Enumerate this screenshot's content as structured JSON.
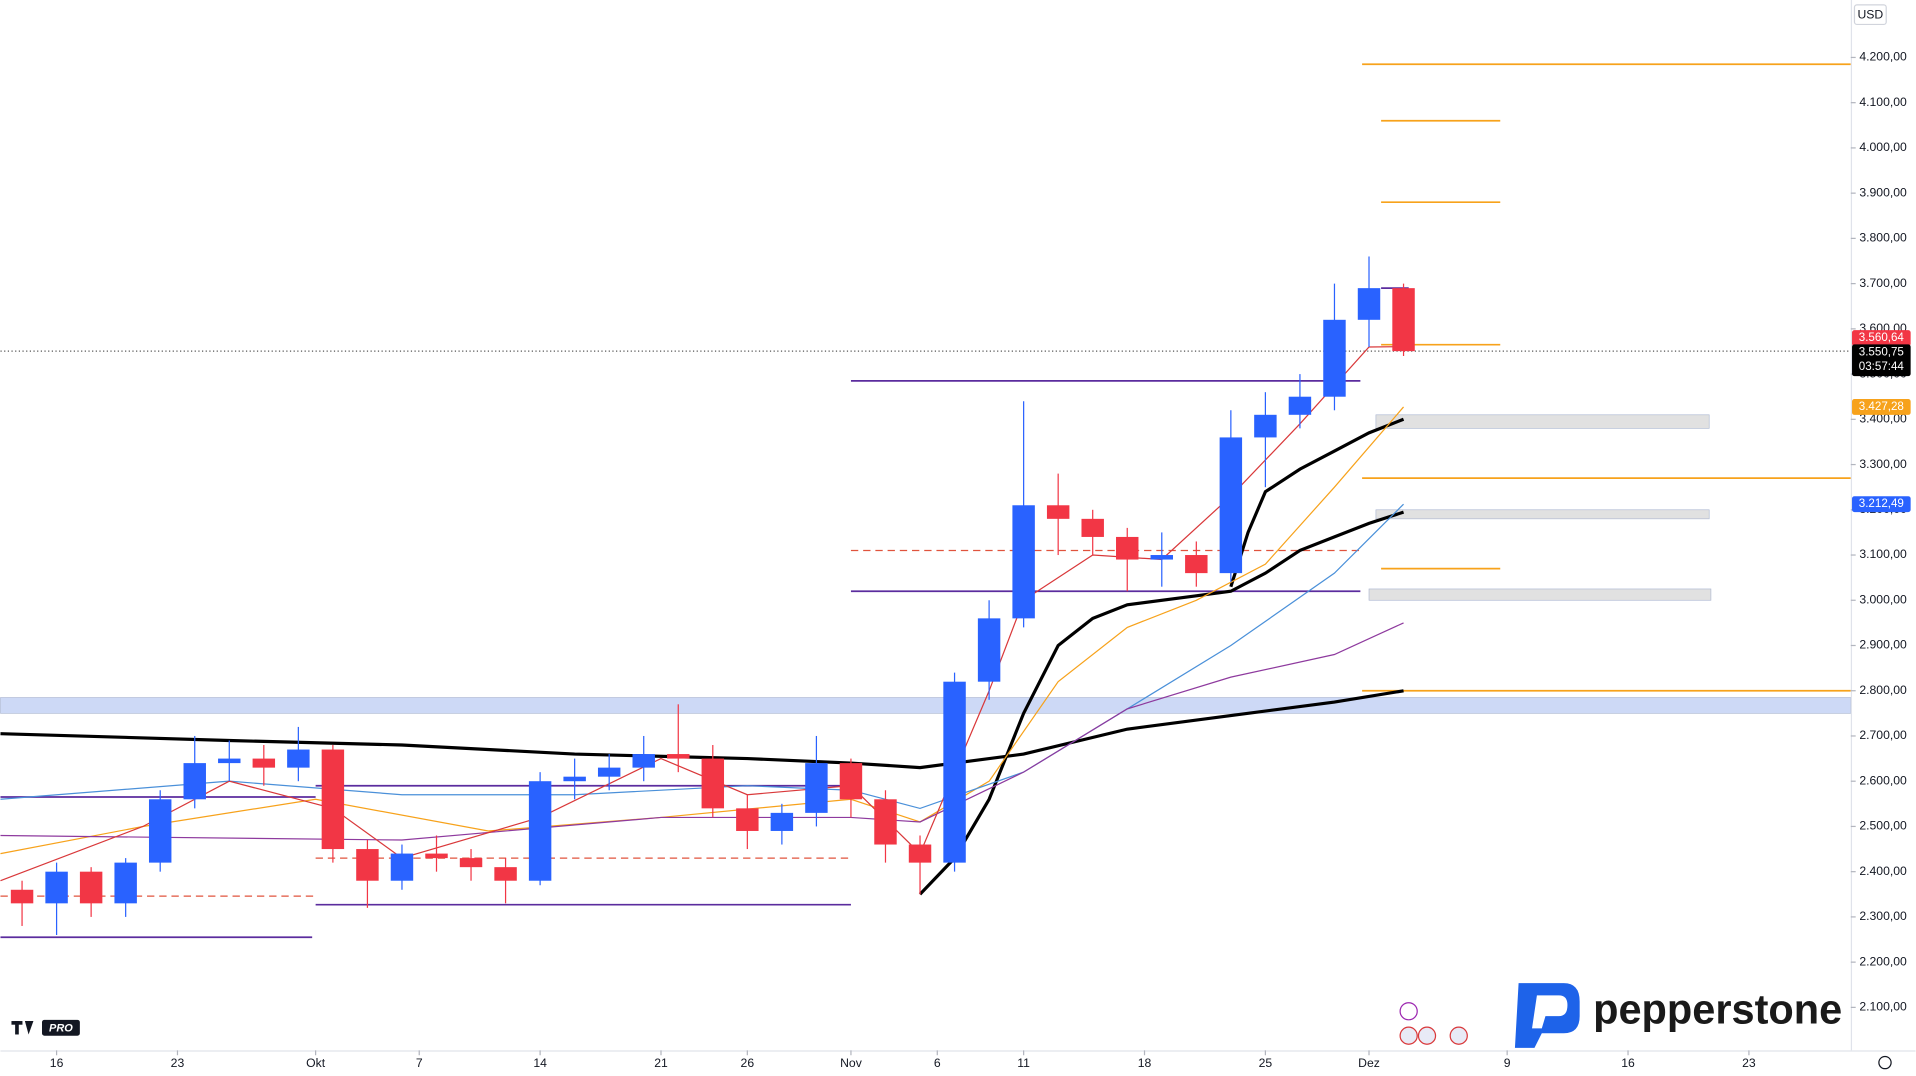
{
  "currency": "USD",
  "badge": "PRO",
  "logo": "pepperstone",
  "chart_data": {
    "type": "candlestick",
    "xlim": [
      -3.25,
      103.9
    ],
    "ylim": [
      2005,
      4327
    ],
    "xticks": [
      {
        "value": 0,
        "label": "16"
      },
      {
        "value": 7,
        "label": "23"
      },
      {
        "value": 15,
        "label": "Okt"
      },
      {
        "value": 21,
        "label": "7"
      },
      {
        "value": 28,
        "label": "14"
      },
      {
        "value": 35,
        "label": "21"
      },
      {
        "value": 40,
        "label": "26"
      },
      {
        "value": 46,
        "label": "Nov"
      },
      {
        "value": 51,
        "label": "6"
      },
      {
        "value": 56,
        "label": "11"
      },
      {
        "value": 63,
        "label": "18"
      },
      {
        "value": 70,
        "label": "25"
      },
      {
        "value": 76,
        "label": "Dez"
      },
      {
        "value": 84,
        "label": "9"
      },
      {
        "value": 91,
        "label": "16"
      },
      {
        "value": 98,
        "label": "23"
      }
    ],
    "yticks": [
      {
        "value": 2100,
        "label": "2.100,00"
      },
      {
        "value": 2200,
        "label": "2.200,00"
      },
      {
        "value": 2300,
        "label": "2.300,00"
      },
      {
        "value": 2400,
        "label": "2.400,00"
      },
      {
        "value": 2500,
        "label": "2.500,00"
      },
      {
        "value": 2600,
        "label": "2.600,00"
      },
      {
        "value": 2700,
        "label": "2.700,00"
      },
      {
        "value": 2800,
        "label": "2.800,00"
      },
      {
        "value": 2900,
        "label": "2.900,00"
      },
      {
        "value": 3000,
        "label": "3.000,00"
      },
      {
        "value": 3100,
        "label": "3.100,00"
      },
      {
        "value": 3200,
        "label": "3.200,00"
      },
      {
        "value": 3300,
        "label": "3.300,00"
      },
      {
        "value": 3400,
        "label": "3.400,00"
      },
      {
        "value": 3500,
        "label": "3.500,00"
      },
      {
        "value": 3600,
        "label": "3.600,00"
      },
      {
        "value": 3700,
        "label": "3.700,00"
      },
      {
        "value": 3800,
        "label": "3.800,00"
      },
      {
        "value": 3900,
        "label": "3.900,00"
      },
      {
        "value": 4000,
        "label": "4.000,00"
      },
      {
        "value": 4100,
        "label": "4.100,00"
      },
      {
        "value": 4200,
        "label": "4.200,00"
      }
    ],
    "up_color": "#2962ff",
    "down_color": "#f23645",
    "x": [
      -2,
      0,
      2,
      4,
      6,
      8,
      10,
      12,
      14,
      16,
      18,
      20,
      22,
      24,
      26,
      28,
      30,
      32,
      34,
      36,
      38,
      40,
      42,
      44,
      46,
      48,
      50,
      52,
      54,
      56,
      58,
      60,
      62,
      64,
      66,
      68,
      70,
      72,
      74,
      76,
      78
    ],
    "open": [
      2360,
      2330,
      2400,
      2330,
      2420,
      2560,
      2640,
      2650,
      2630,
      2670,
      2450,
      2380,
      2440,
      2430,
      2410,
      2380,
      2600,
      2610,
      2630,
      2660,
      2650,
      2540,
      2490,
      2530,
      2640,
      2560,
      2460,
      2420,
      2820,
      2960,
      3210,
      3180,
      3140,
      3090,
      3100,
      3060,
      3360,
      3410,
      3450,
      3620,
      3690
    ],
    "high": [
      2380,
      2420,
      2410,
      2430,
      2580,
      2700,
      2690,
      2680,
      2720,
      2680,
      2470,
      2460,
      2480,
      2450,
      2430,
      2620,
      2650,
      2660,
      2700,
      2770,
      2680,
      2570,
      2550,
      2700,
      2650,
      2580,
      2480,
      2840,
      3000,
      3440,
      3280,
      3200,
      3160,
      3150,
      3130,
      3420,
      3460,
      3500,
      3700,
      3760,
      3700
    ],
    "low": [
      2280,
      2260,
      2300,
      2300,
      2400,
      2540,
      2600,
      2590,
      2600,
      2420,
      2320,
      2360,
      2400,
      2380,
      2330,
      2370,
      2560,
      2580,
      2600,
      2620,
      2520,
      2450,
      2460,
      2500,
      2520,
      2420,
      2350,
      2400,
      2780,
      2940,
      3100,
      3100,
      3020,
      3030,
      3030,
      3040,
      3250,
      3380,
      3420,
      3560,
      3540
    ],
    "close": [
      2330,
      2400,
      2330,
      2420,
      2560,
      2640,
      2650,
      2630,
      2670,
      2450,
      2380,
      2440,
      2430,
      2410,
      2380,
      2600,
      2610,
      2630,
      2660,
      2650,
      2540,
      2490,
      2530,
      2640,
      2560,
      2460,
      2420,
      2820,
      2960,
      3210,
      3180,
      3140,
      3090,
      3100,
      3060,
      3360,
      3410,
      3450,
      3620,
      3690,
      3550.75
    ],
    "lines": [
      {
        "color": "#000000",
        "width": 2.6,
        "x": [
          -3.25,
          10,
          20,
          30,
          40,
          46,
          50,
          56,
          62,
          68,
          74,
          78
        ],
        "values": [
          2705,
          2690,
          2680,
          2660,
          2650,
          2640,
          2630,
          2660,
          2715,
          2745,
          2775,
          2800
        ]
      },
      {
        "color": "#000000",
        "width": 2.6,
        "x": [
          50,
          52,
          54,
          56,
          58,
          60,
          62,
          66,
          68,
          70,
          72,
          74,
          76,
          78
        ],
        "values": [
          2350,
          2430,
          2560,
          2750,
          2900,
          2960,
          2990,
          3010,
          3020,
          3060,
          3110,
          3140,
          3170,
          3195
        ]
      },
      {
        "color": "#000000",
        "width": 2.6,
        "x": [
          68,
          69,
          70,
          72,
          74,
          76,
          78
        ],
        "values": [
          3030,
          3150,
          3240,
          3290,
          3330,
          3370,
          3400
        ]
      },
      {
        "color": "#f7a21b",
        "width": 1,
        "x": [
          -3.25,
          5,
          15,
          25,
          35,
          46,
          50,
          54,
          58,
          62,
          66,
          70,
          74,
          78
        ],
        "values": [
          2440,
          2500,
          2560,
          2490,
          2520,
          2560,
          2510,
          2600,
          2820,
          2940,
          3000,
          3080,
          3250,
          3427.28
        ]
      },
      {
        "color": "#4a90d9",
        "width": 1,
        "x": [
          -3.25,
          10,
          20,
          30,
          40,
          46,
          50,
          56,
          62,
          68,
          74,
          78
        ],
        "values": [
          2560,
          2600,
          2570,
          2570,
          2590,
          2580,
          2540,
          2620,
          2760,
          2900,
          3060,
          3212.49
        ]
      },
      {
        "color": "#8e3a9e",
        "width": 1,
        "x": [
          -3.25,
          20,
          35,
          46,
          50,
          56,
          62,
          68,
          74,
          78
        ],
        "values": [
          2480,
          2470,
          2520,
          2520,
          2510,
          2620,
          2760,
          2830,
          2880,
          2950
        ]
      },
      {
        "color": "#d9383a",
        "width": 1,
        "x": [
          -3.25,
          5,
          10,
          16,
          20,
          28,
          35,
          40,
          46,
          50,
          54,
          56,
          60,
          64,
          68,
          72,
          76,
          78
        ],
        "values": [
          2380,
          2500,
          2600,
          2540,
          2430,
          2520,
          2650,
          2570,
          2590,
          2440,
          2800,
          3000,
          3100,
          3090,
          3230,
          3390,
          3560,
          3560.64
        ]
      }
    ],
    "levels": [
      {
        "value": 4185,
        "x": [
          75.6,
          103.9
        ],
        "color": "#f7a21b",
        "style": "solid"
      },
      {
        "value": 4060,
        "x": [
          76.7,
          83.6
        ],
        "color": "#f7a21b",
        "style": "solid"
      },
      {
        "value": 3880,
        "x": [
          76.7,
          83.6
        ],
        "color": "#f7a21b",
        "style": "solid"
      },
      {
        "value": 3565,
        "x": [
          76.7,
          83.6
        ],
        "color": "#f7a21b",
        "style": "solid"
      },
      {
        "value": 3270,
        "x": [
          75.6,
          103.9
        ],
        "color": "#f7a21b",
        "style": "solid"
      },
      {
        "value": 3070,
        "x": [
          76.7,
          83.6
        ],
        "color": "#f7a21b",
        "style": "solid"
      },
      {
        "value": 2800,
        "x": [
          75.6,
          103.9
        ],
        "color": "#f7a21b",
        "style": "solid"
      },
      {
        "value": 3690,
        "x": [
          76.7,
          78.3
        ],
        "color": "#5b2c9e",
        "style": "solid"
      },
      {
        "value": 3485,
        "x": [
          46,
          75.5
        ],
        "color": "#5b2c9e",
        "style": "solid"
      },
      {
        "value": 3020,
        "x": [
          46,
          75.5
        ],
        "color": "#5b2c9e",
        "style": "solid"
      },
      {
        "value": 2565,
        "x": [
          -3.25,
          15
        ],
        "color": "#5b2c9e",
        "style": "solid"
      },
      {
        "value": 2255,
        "x": [
          -3.25,
          14.8
        ],
        "color": "#5b2c9e",
        "style": "solid"
      },
      {
        "value": 2590,
        "x": [
          15,
          46
        ],
        "color": "#5b2c9e",
        "style": "solid"
      },
      {
        "value": 2327,
        "x": [
          15,
          46
        ],
        "color": "#5b2c9e",
        "style": "solid"
      },
      {
        "value": 2346,
        "x": [
          -3.25,
          15
        ],
        "color": "#e0533d",
        "style": "dashed"
      },
      {
        "value": 2430,
        "x": [
          15,
          46
        ],
        "color": "#e0533d",
        "style": "dashed"
      },
      {
        "value": 3110,
        "x": [
          46,
          75.5
        ],
        "color": "#e0533d",
        "style": "dashed"
      },
      {
        "value": 3550.75,
        "x": [
          -3.25,
          103.9
        ],
        "color": "#555555",
        "style": "dotted"
      }
    ],
    "zones": [
      {
        "values": [
          2750,
          2785
        ],
        "x": [
          -3.25,
          103.9
        ],
        "color": "#c5d3f5"
      },
      {
        "values": [
          3380,
          3410
        ],
        "x": [
          76.4,
          95.7
        ],
        "color": "#dcdcdc"
      },
      {
        "values": [
          3180,
          3200
        ],
        "x": [
          76.4,
          95.7
        ],
        "color": "#dcdcdc"
      },
      {
        "values": [
          3000,
          3025
        ],
        "x": [
          76,
          95.8
        ],
        "color": "#dcdcdc"
      }
    ],
    "price_labels": [
      {
        "value": 3560.64,
        "label": "3.560,64",
        "color": "#f23645"
      },
      {
        "value": 3550.75,
        "label": "3.550,75",
        "color": "#000000"
      },
      {
        "value": 3427.28,
        "label": "3.427,28",
        "color": "#f7a21b"
      },
      {
        "value": 3212.49,
        "label": "3.212,49",
        "color": "#2962ff"
      }
    ],
    "countdown": "03:57:44"
  }
}
